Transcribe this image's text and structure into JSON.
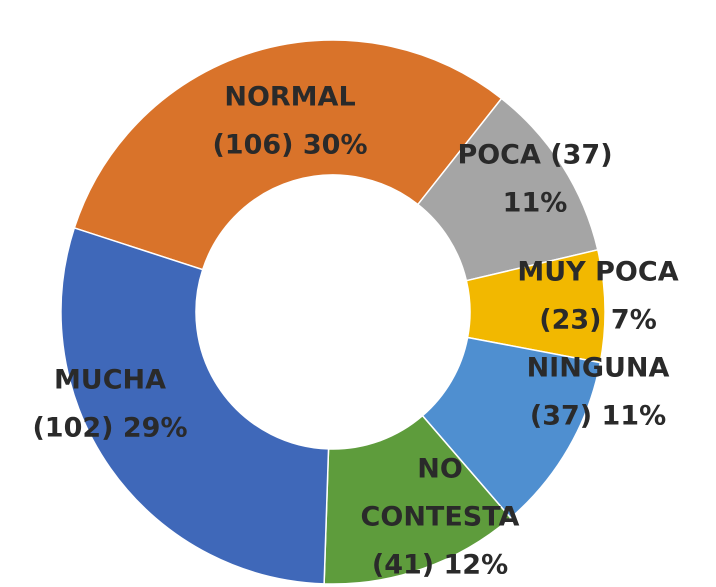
{
  "chart_data": {
    "type": "donut",
    "labels": [
      [
        "NORMAL",
        "(106) 30%"
      ],
      [
        "POCA (37)",
        "11%"
      ],
      [
        "MUY POCA",
        "(23) 7%"
      ],
      [
        "NINGUNA",
        "(37) 11%"
      ],
      [
        "NO",
        "CONTESTA",
        "(41) 12%"
      ],
      [
        "MUCHA",
        "(102) 29%"
      ]
    ],
    "values": [
      106,
      37,
      23,
      37,
      41,
      102
    ],
    "colors": [
      "#d9732a",
      "#a5a5a5",
      "#f2b800",
      "#4f8fd0",
      "#5e9c3c",
      "#3f68b9"
    ]
  }
}
